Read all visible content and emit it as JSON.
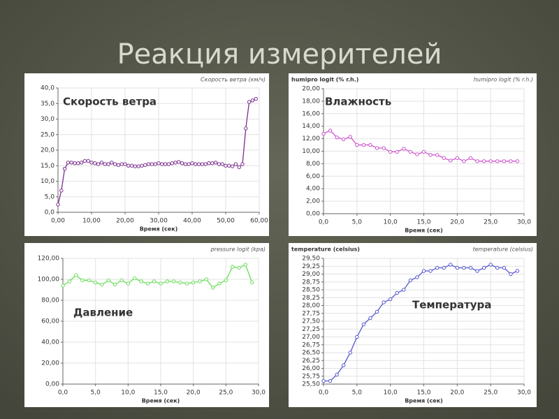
{
  "slide_title": "Реакция измерителей",
  "chart_data": [
    {
      "type": "line",
      "title": "Скорость ветра (км/ч)",
      "annotation": "Скорость ветра",
      "xlabel": "Время (сек)",
      "color": "#7b2d8e",
      "x": [
        0,
        1,
        2,
        3,
        4,
        5,
        6,
        7,
        8,
        9,
        10,
        11,
        12,
        13,
        14,
        15,
        16,
        17,
        18,
        19,
        20,
        21,
        22,
        23,
        24,
        25,
        26,
        27,
        28,
        29,
        30,
        31,
        32,
        33,
        34,
        35,
        36,
        37,
        38,
        39,
        40,
        41,
        42,
        43,
        44,
        45,
        46,
        47,
        48,
        49,
        50,
        51,
        52,
        53,
        54,
        55,
        56,
        57,
        58,
        59
      ],
      "values": [
        2.5,
        7,
        14,
        16,
        16,
        15.8,
        15.8,
        16,
        16.5,
        16.5,
        16,
        15.8,
        15.5,
        16,
        15.5,
        15.5,
        16,
        15.5,
        15.2,
        15.5,
        15.5,
        15,
        15,
        14.8,
        14.8,
        15,
        15.2,
        15.5,
        15.5,
        15.5,
        15.8,
        15.5,
        15.5,
        15.5,
        15.8,
        16,
        16.2,
        15.8,
        15.5,
        15.5,
        15.8,
        15.5,
        15.5,
        15.5,
        15.5,
        15.8,
        15.8,
        16,
        15.5,
        15.5,
        15,
        15,
        14.8,
        15.5,
        14.5,
        15.5,
        27,
        35.5,
        36,
        36.5
      ],
      "xlim": [
        0,
        60
      ],
      "ylim": [
        0,
        40
      ],
      "grid": true,
      "xticks": [
        {
          "value": 0,
          "label": "0,00"
        },
        {
          "value": 10,
          "label": "10,00"
        },
        {
          "value": 20,
          "label": "20,00"
        },
        {
          "value": 30,
          "label": "30,00"
        },
        {
          "value": 40,
          "label": "40,00"
        },
        {
          "value": 50,
          "label": "50,00"
        },
        {
          "value": 60,
          "label": "60,00"
        }
      ],
      "yticks": [
        {
          "value": 0,
          "label": "0,0"
        },
        {
          "value": 5,
          "label": "5,0"
        },
        {
          "value": 10,
          "label": "10,0"
        },
        {
          "value": 15,
          "label": "15,0"
        },
        {
          "value": 20,
          "label": "20,0"
        },
        {
          "value": 25,
          "label": "25,0"
        },
        {
          "value": 30,
          "label": "30,0"
        },
        {
          "value": 35,
          "label": "35,0"
        },
        {
          "value": 40,
          "label": "40,0"
        }
      ]
    },
    {
      "type": "line",
      "title": "humipro logit (% r.h.)",
      "ylabel": "humipro logit (% r.h.)",
      "annotation": "Влажность",
      "xlabel": "Время (сек)",
      "color": "#cc55cc",
      "x": [
        0,
        1,
        2,
        3,
        4,
        5,
        6,
        7,
        8,
        9,
        10,
        11,
        12,
        13,
        14,
        15,
        16,
        17,
        18,
        19,
        20,
        21,
        22,
        23,
        24,
        25,
        26,
        27,
        28,
        29
      ],
      "values": [
        12.8,
        13.3,
        12.2,
        11.9,
        12.3,
        11,
        11,
        11,
        10.5,
        10.5,
        9.9,
        9.9,
        10.4,
        9.9,
        9.5,
        9.9,
        9.4,
        9.4,
        8.9,
        8.5,
        8.9,
        8.4,
        8.9,
        8.4,
        8.4,
        8.4,
        8.4,
        8.4,
        8.4,
        8.4
      ],
      "xlim": [
        0,
        30
      ],
      "ylim": [
        0,
        20
      ],
      "grid": true,
      "xticks": [
        {
          "value": 0,
          "label": "0,0"
        },
        {
          "value": 5,
          "label": "5,0"
        },
        {
          "value": 10,
          "label": "10,0"
        },
        {
          "value": 15,
          "label": "15,0"
        },
        {
          "value": 20,
          "label": "20,0"
        },
        {
          "value": 25,
          "label": "25,0"
        },
        {
          "value": 30,
          "label": "30,0"
        }
      ],
      "yticks": [
        {
          "value": 0,
          "label": "0,00"
        },
        {
          "value": 2,
          "label": "2,00"
        },
        {
          "value": 4,
          "label": "4,00"
        },
        {
          "value": 6,
          "label": "6,00"
        },
        {
          "value": 8,
          "label": "8,00"
        },
        {
          "value": 10,
          "label": "10,00"
        },
        {
          "value": 12,
          "label": "12,00"
        },
        {
          "value": 14,
          "label": "14,00"
        },
        {
          "value": 16,
          "label": "16,00"
        },
        {
          "value": 18,
          "label": "18,00"
        },
        {
          "value": 20,
          "label": "20,00"
        }
      ]
    },
    {
      "type": "line",
      "title": "pressure logit (kpa)",
      "annotation": "Давление",
      "xlabel": "Время (сек)",
      "color": "#66dd55",
      "x": [
        0,
        1,
        2,
        3,
        4,
        5,
        6,
        7,
        8,
        9,
        10,
        11,
        12,
        13,
        14,
        15,
        16,
        17,
        18,
        19,
        20,
        21,
        22,
        23,
        24,
        25,
        26,
        27,
        28,
        29
      ],
      "values": [
        94,
        98,
        104,
        99,
        99,
        97,
        95,
        99,
        95,
        99,
        96,
        101,
        98,
        96,
        98,
        96,
        98,
        98,
        97,
        96,
        97,
        98,
        100,
        92,
        96,
        99,
        112,
        111,
        114,
        97
      ],
      "xlim": [
        0,
        30
      ],
      "ylim": [
        0,
        120
      ],
      "grid": true,
      "xticks": [
        {
          "value": 0,
          "label": "0,0"
        },
        {
          "value": 5,
          "label": "5,0"
        },
        {
          "value": 10,
          "label": "10,0"
        },
        {
          "value": 15,
          "label": "15,0"
        },
        {
          "value": 20,
          "label": "20,0"
        },
        {
          "value": 25,
          "label": "25,0"
        },
        {
          "value": 30,
          "label": "30,0"
        }
      ],
      "yticks": [
        {
          "value": 0,
          "label": "0,00"
        },
        {
          "value": 20,
          "label": "20,00"
        },
        {
          "value": 40,
          "label": "40,00"
        },
        {
          "value": 60,
          "label": "60,00"
        },
        {
          "value": 80,
          "label": "80,00"
        },
        {
          "value": 100,
          "label": "100,00"
        },
        {
          "value": 120,
          "label": "120,00"
        }
      ]
    },
    {
      "type": "line",
      "title": "temperature (celsius)",
      "ylabel": "temperature (celsius)",
      "annotation": "Температура",
      "xlabel": "Время (сек)",
      "color": "#5555cc",
      "x": [
        0,
        1,
        2,
        3,
        4,
        5,
        6,
        7,
        8,
        9,
        10,
        11,
        12,
        13,
        14,
        15,
        16,
        17,
        18,
        19,
        20,
        21,
        22,
        23,
        24,
        25,
        26,
        27,
        28,
        29
      ],
      "values": [
        25.6,
        25.6,
        25.8,
        26.1,
        26.5,
        27.0,
        27.4,
        27.6,
        27.8,
        28.1,
        28.2,
        28.4,
        28.5,
        28.8,
        28.9,
        29.1,
        29.1,
        29.2,
        29.2,
        29.3,
        29.2,
        29.2,
        29.2,
        29.1,
        29.2,
        29.3,
        29.2,
        29.2,
        29.0,
        29.1
      ],
      "xlim": [
        0,
        30
      ],
      "ylim": [
        25.5,
        29.5
      ],
      "grid": true,
      "xticks": [
        {
          "value": 0,
          "label": "0,0"
        },
        {
          "value": 5,
          "label": "5,0"
        },
        {
          "value": 10,
          "label": "10,0"
        },
        {
          "value": 15,
          "label": "15,0"
        },
        {
          "value": 20,
          "label": "20,0"
        },
        {
          "value": 25,
          "label": "25,0"
        },
        {
          "value": 30,
          "label": "30,0"
        }
      ],
      "yticks": [
        {
          "value": 25.5,
          "label": "25,50"
        },
        {
          "value": 25.75,
          "label": "25,75"
        },
        {
          "value": 26,
          "label": "26,00"
        },
        {
          "value": 26.25,
          "label": "26,25"
        },
        {
          "value": 26.5,
          "label": "26,50"
        },
        {
          "value": 26.75,
          "label": "26,75"
        },
        {
          "value": 27,
          "label": "27,00"
        },
        {
          "value": 27.25,
          "label": "27,25"
        },
        {
          "value": 27.5,
          "label": "27,50"
        },
        {
          "value": 27.75,
          "label": "27,75"
        },
        {
          "value": 28,
          "label": "28,00"
        },
        {
          "value": 28.25,
          "label": "28,25"
        },
        {
          "value": 28.5,
          "label": "28,50"
        },
        {
          "value": 28.75,
          "label": "28,75"
        },
        {
          "value": 29,
          "label": "29,00"
        },
        {
          "value": 29.25,
          "label": "29,25"
        },
        {
          "value": 29.5,
          "label": "29,50"
        }
      ]
    }
  ]
}
